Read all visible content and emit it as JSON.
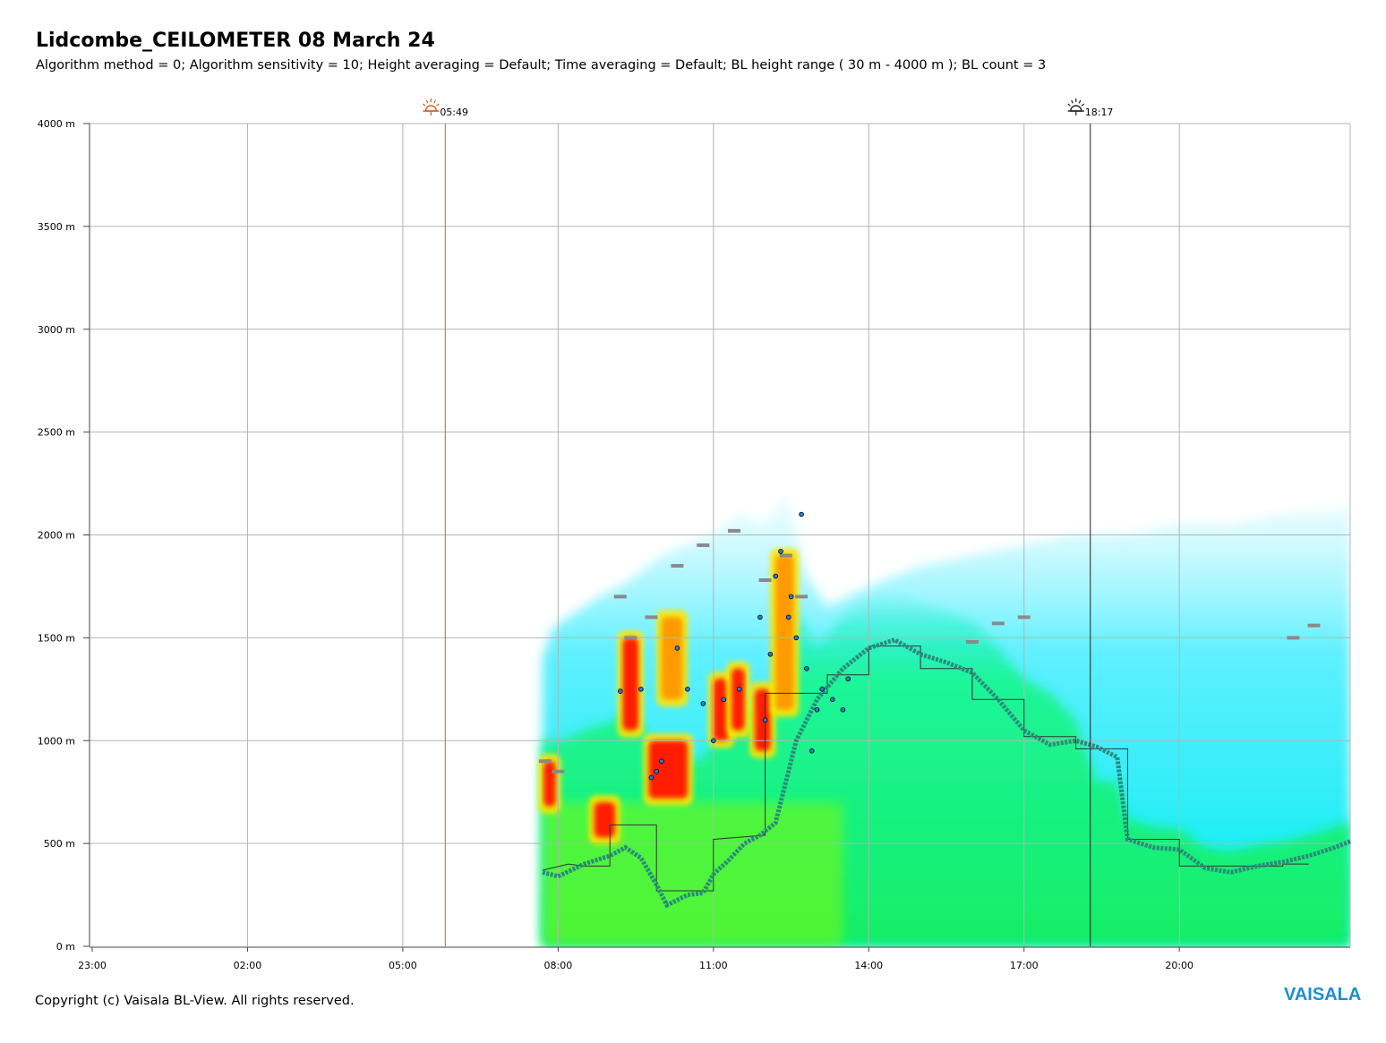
{
  "title": "Lidcombe_CEILOMETER 08 March 24",
  "subtitle": "Algorithm method = 0; Algorithm sensitivity = 10; Height averaging = Default; Time averaging = Default; BL height range ( 30 m - 4000 m ); BL count = 3",
  "footer": {
    "copyright": "Copyright (c) Vaisala BL-View. All rights reserved.",
    "brand": "VAISALA"
  },
  "colors": {
    "sunrise": "#d2601e",
    "sunset": "#222222",
    "grid": "#b4b4b4",
    "bl_line": "#2a8a7a",
    "cloud_marker": "#8a8a8a",
    "low_backscatter": "#33ff99",
    "mid_backscatter": "#00eeff",
    "high_backscatter": "#ff1a00"
  },
  "chart_data": {
    "type": "heatmap",
    "title": "Lidcombe_CEILOMETER 08 March 24",
    "x_axis": {
      "unit": "hours",
      "start": -1,
      "end": 23.3,
      "ticks": [
        {
          "value": -1,
          "label": "23:00"
        },
        {
          "value": 2,
          "label": "02:00"
        },
        {
          "value": 5,
          "label": "05:00"
        },
        {
          "value": 8,
          "label": "08:00"
        },
        {
          "value": 11,
          "label": "11:00"
        },
        {
          "value": 14,
          "label": "14:00"
        },
        {
          "value": 17,
          "label": "17:00"
        },
        {
          "value": 20,
          "label": "20:00"
        }
      ]
    },
    "y_axis": {
      "unit": "m",
      "range": [
        0,
        4000
      ],
      "ticks": [
        {
          "value": 0,
          "label": "0 m"
        },
        {
          "value": 500,
          "label": "500 m"
        },
        {
          "value": 1000,
          "label": "1000 m"
        },
        {
          "value": 1500,
          "label": "1500 m"
        },
        {
          "value": 2000,
          "label": "2000 m"
        },
        {
          "value": 2500,
          "label": "2500 m"
        },
        {
          "value": 3000,
          "label": "3000 m"
        },
        {
          "value": 3500,
          "label": "3500 m"
        },
        {
          "value": 4000,
          "label": "4000 m"
        }
      ]
    },
    "grid": true,
    "sun_events": [
      {
        "type": "sunrise",
        "time": 5.82,
        "label": "05:49"
      },
      {
        "type": "sunset",
        "time": 18.28,
        "label": "18:17"
      }
    ],
    "data_start_time": 7.7,
    "backscatter_top_profile": [
      [
        7.7,
        1400
      ],
      [
        7.9,
        1550
      ],
      [
        8.2,
        1600
      ],
      [
        8.5,
        1650
      ],
      [
        8.8,
        1700
      ],
      [
        9.2,
        1750
      ],
      [
        9.5,
        1800
      ],
      [
        10.0,
        1900
      ],
      [
        10.5,
        1950
      ],
      [
        11.0,
        2000
      ],
      [
        11.5,
        2100
      ],
      [
        12.0,
        2050
      ],
      [
        12.4,
        2200
      ],
      [
        12.8,
        1800
      ],
      [
        13.2,
        1650
      ],
      [
        13.6,
        1700
      ],
      [
        14.0,
        1750
      ],
      [
        15.0,
        1850
      ],
      [
        16.0,
        1900
      ],
      [
        17.0,
        1950
      ],
      [
        18.0,
        2000
      ],
      [
        19.0,
        2000
      ],
      [
        20.0,
        2050
      ],
      [
        21.0,
        2050
      ],
      [
        22.0,
        2100
      ],
      [
        23.0,
        2120
      ],
      [
        23.3,
        2140
      ]
    ],
    "high_backscatter_patches": [
      {
        "t0": 7.72,
        "t1": 7.95,
        "h0": 680,
        "h1": 900,
        "level": "high"
      },
      {
        "t0": 8.7,
        "t1": 9.1,
        "h0": 530,
        "h1": 700,
        "level": "high"
      },
      {
        "t0": 9.25,
        "t1": 9.55,
        "h0": 1050,
        "h1": 1500,
        "level": "high"
      },
      {
        "t0": 9.75,
        "t1": 10.5,
        "h0": 720,
        "h1": 1000,
        "level": "high"
      },
      {
        "t0": 10.0,
        "t1": 10.4,
        "h0": 1200,
        "h1": 1600,
        "level": "mid"
      },
      {
        "t0": 11.0,
        "t1": 11.3,
        "h0": 1000,
        "h1": 1300,
        "level": "high"
      },
      {
        "t0": 11.35,
        "t1": 11.6,
        "h0": 1050,
        "h1": 1350,
        "level": "high"
      },
      {
        "t0": 11.8,
        "t1": 12.1,
        "h0": 950,
        "h1": 1250,
        "level": "high"
      },
      {
        "t0": 12.2,
        "t1": 12.55,
        "h0": 1150,
        "h1": 1900,
        "level": "mid"
      }
    ],
    "series": [
      {
        "name": "BL height",
        "type": "line",
        "points": [
          [
            7.7,
            360
          ],
          [
            8.0,
            340
          ],
          [
            8.5,
            400
          ],
          [
            9.0,
            440
          ],
          [
            9.3,
            480
          ],
          [
            9.6,
            430
          ],
          [
            9.9,
            300
          ],
          [
            10.1,
            200
          ],
          [
            10.5,
            250
          ],
          [
            10.8,
            260
          ],
          [
            11.0,
            350
          ],
          [
            11.3,
            420
          ],
          [
            11.6,
            500
          ],
          [
            11.9,
            540
          ],
          [
            12.2,
            600
          ],
          [
            12.6,
            1000
          ],
          [
            13.0,
            1200
          ],
          [
            13.5,
            1350
          ],
          [
            14.0,
            1450
          ],
          [
            14.5,
            1490
          ],
          [
            15.0,
            1420
          ],
          [
            15.5,
            1380
          ],
          [
            16.0,
            1330
          ],
          [
            16.5,
            1200
          ],
          [
            17.0,
            1050
          ],
          [
            17.5,
            980
          ],
          [
            18.0,
            1000
          ],
          [
            18.4,
            970
          ],
          [
            18.8,
            920
          ],
          [
            19.0,
            520
          ],
          [
            19.5,
            480
          ],
          [
            20.0,
            470
          ],
          [
            20.5,
            380
          ],
          [
            21.0,
            360
          ],
          [
            21.5,
            390
          ],
          [
            22.0,
            410
          ],
          [
            22.5,
            440
          ],
          [
            23.0,
            480
          ],
          [
            23.3,
            510
          ]
        ]
      },
      {
        "name": "BL step",
        "type": "step",
        "points": [
          [
            7.7,
            370
          ],
          [
            8.2,
            400
          ],
          [
            8.5,
            390
          ],
          [
            9.0,
            390
          ],
          [
            9.0,
            590
          ],
          [
            9.9,
            590
          ],
          [
            9.9,
            270
          ],
          [
            11.0,
            270
          ],
          [
            11.0,
            520
          ],
          [
            12.0,
            540
          ],
          [
            12.0,
            1230
          ],
          [
            13.2,
            1230
          ],
          [
            13.2,
            1320
          ],
          [
            14.0,
            1320
          ],
          [
            14.0,
            1460
          ],
          [
            15.0,
            1460
          ],
          [
            15.0,
            1350
          ],
          [
            16.0,
            1350
          ],
          [
            16.0,
            1200
          ],
          [
            17.0,
            1200
          ],
          [
            17.0,
            1020
          ],
          [
            18.0,
            1020
          ],
          [
            18.0,
            960
          ],
          [
            19.0,
            960
          ],
          [
            19.0,
            520
          ],
          [
            20.0,
            520
          ],
          [
            20.0,
            390
          ],
          [
            22.0,
            390
          ],
          [
            22.0,
            400
          ],
          [
            22.5,
            400
          ]
        ]
      },
      {
        "name": "Cloud base",
        "type": "markers",
        "points": [
          [
            7.75,
            900
          ],
          [
            8.0,
            850
          ],
          [
            9.2,
            1700
          ],
          [
            9.4,
            1500
          ],
          [
            9.8,
            1600
          ],
          [
            10.3,
            1850
          ],
          [
            10.8,
            1950
          ],
          [
            11.4,
            2020
          ],
          [
            12.0,
            1780
          ],
          [
            12.4,
            1900
          ],
          [
            12.7,
            1700
          ],
          [
            16.0,
            1480
          ],
          [
            16.5,
            1570
          ],
          [
            17.0,
            1600
          ],
          [
            22.2,
            1500
          ],
          [
            22.6,
            1560
          ]
        ]
      },
      {
        "name": "Aerosol layer points",
        "type": "scatter",
        "points": [
          [
            9.2,
            1240
          ],
          [
            9.6,
            1250
          ],
          [
            9.8,
            820
          ],
          [
            9.9,
            850
          ],
          [
            10.0,
            900
          ],
          [
            10.3,
            1450
          ],
          [
            10.5,
            1250
          ],
          [
            10.8,
            1180
          ],
          [
            11.0,
            1000
          ],
          [
            11.2,
            1200
          ],
          [
            11.5,
            1250
          ],
          [
            11.9,
            1600
          ],
          [
            12.0,
            1100
          ],
          [
            12.1,
            1420
          ],
          [
            12.2,
            1800
          ],
          [
            12.3,
            1920
          ],
          [
            12.45,
            1600
          ],
          [
            12.5,
            1700
          ],
          [
            12.6,
            1500
          ],
          [
            12.7,
            2100
          ],
          [
            12.8,
            1350
          ],
          [
            12.9,
            950
          ],
          [
            13.0,
            1150
          ],
          [
            13.1,
            1250
          ],
          [
            13.3,
            1200
          ],
          [
            13.5,
            1150
          ],
          [
            13.6,
            1300
          ]
        ]
      }
    ]
  }
}
